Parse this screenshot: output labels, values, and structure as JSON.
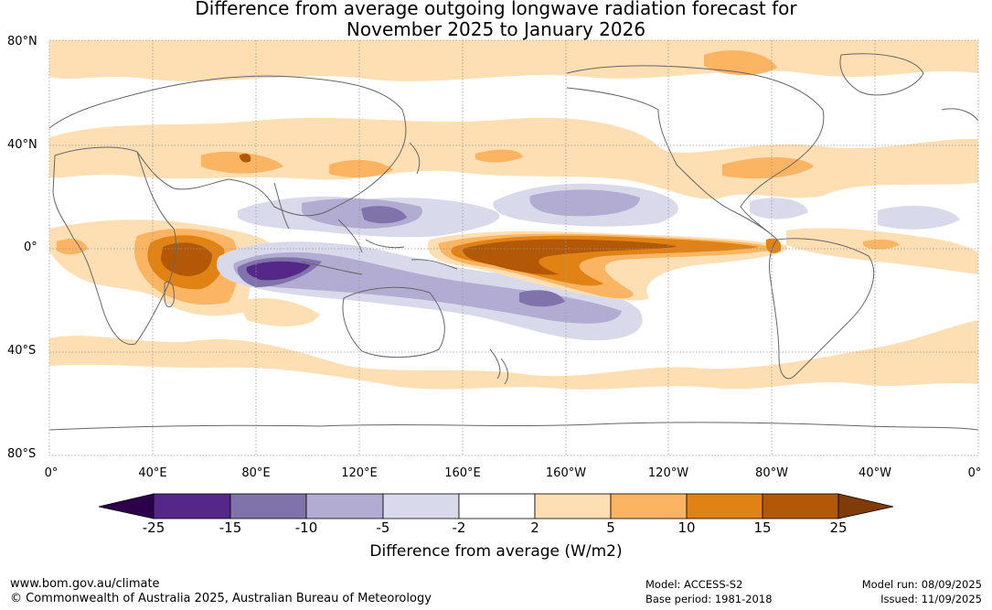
{
  "title": {
    "line1": "Difference from average outgoing longwave radiation forecast for",
    "line2": "November 2025 to January 2026"
  },
  "map": {
    "lat_labels": [
      "80°N",
      "40°N",
      "0°",
      "40°S",
      "80°S"
    ],
    "lon_labels": [
      "0°",
      "40°E",
      "80°E",
      "120°E",
      "160°E",
      "160°W",
      "120°W",
      "80°W",
      "40°W",
      "0°"
    ],
    "land_outline_color": "#666666",
    "grid_color": "#999999"
  },
  "colorbar": {
    "label": "Difference from average (W/m2)",
    "ticks": [
      "-25",
      "-15",
      "-10",
      "-5",
      "-2",
      "2",
      "5",
      "10",
      "15",
      "25"
    ],
    "colors": {
      "below_-25": "#2d004b",
      "-25_-15": "#542788",
      "-15_-10": "#8073ac",
      "-10_-5": "#b2abd2",
      "-5_-2": "#d8daeb",
      "-2_2": "#ffffff",
      "2_5": "#fddfb3",
      "5_10": "#fbb462",
      "10_15": "#e08214",
      "15_25": "#b35806",
      "above_25": "#7f3b08"
    }
  },
  "footer": {
    "url": "www.bom.gov.au/climate",
    "copyright": "© Commonwealth of Australia 2025, Australian Bureau of Meteorology",
    "model": "Model: ACCESS-S2",
    "base_period": "Base period: 1981-2018",
    "model_run": "Model run: 08/09/2025",
    "issued": "Issued: 11/09/2025"
  }
}
